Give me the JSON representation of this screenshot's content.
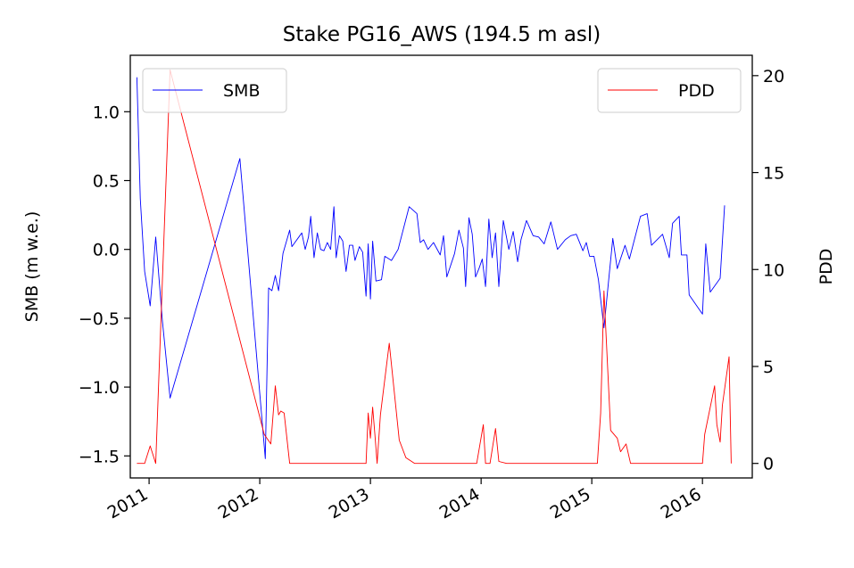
{
  "chart_data": {
    "type": "line",
    "title": "Stake PG16_AWS (194.5 m asl)",
    "xlabel": "",
    "ylabel": "SMB (m w.e.)",
    "y2label": "PDD",
    "xlim": [
      2010.83,
      2016.45
    ],
    "ylim": [
      -1.66,
      1.41
    ],
    "y2lim": [
      -0.75,
      21.05
    ],
    "x_ticks": [
      2011,
      2012,
      2013,
      2014,
      2015,
      2016
    ],
    "x_tick_labels": [
      "2011",
      "2012",
      "2013",
      "2014",
      "2015",
      "2016"
    ],
    "y_ticks": [
      1.0,
      0.5,
      0.0,
      -0.5,
      -1.0,
      -1.5
    ],
    "y_tick_labels": [
      "1.0",
      "0.5",
      "0.0",
      "−0.5",
      "−1.0",
      "−1.5"
    ],
    "y2_ticks": [
      20,
      15,
      10,
      5,
      0
    ],
    "y2_tick_labels": [
      "20",
      "15",
      "10",
      "5",
      "0"
    ],
    "series": [
      {
        "name": "SMB",
        "axis": "left",
        "color": "#0000ff",
        "legend_location": "upper left",
        "points": [
          [
            2010.89,
            1.25
          ],
          [
            2010.92,
            0.37
          ],
          [
            2010.96,
            -0.16
          ],
          [
            2011.01,
            -0.41
          ],
          [
            2011.06,
            0.09
          ],
          [
            2011.12,
            -0.52
          ],
          [
            2011.19,
            -1.08
          ],
          [
            2011.82,
            0.66
          ],
          [
            2012.05,
            -1.52
          ],
          [
            2012.08,
            -0.28
          ],
          [
            2012.11,
            -0.3
          ],
          [
            2012.14,
            -0.19
          ],
          [
            2012.17,
            -0.3
          ],
          [
            2012.21,
            -0.03
          ],
          [
            2012.27,
            0.14
          ],
          [
            2012.29,
            0.02
          ],
          [
            2012.38,
            0.12
          ],
          [
            2012.41,
            0.0
          ],
          [
            2012.44,
            0.09
          ],
          [
            2012.46,
            0.24
          ],
          [
            2012.49,
            -0.06
          ],
          [
            2012.52,
            0.12
          ],
          [
            2012.55,
            0.0
          ],
          [
            2012.58,
            -0.01
          ],
          [
            2012.61,
            0.05
          ],
          [
            2012.64,
            0.0
          ],
          [
            2012.67,
            0.31
          ],
          [
            2012.69,
            -0.06
          ],
          [
            2012.72,
            0.1
          ],
          [
            2012.75,
            0.06
          ],
          [
            2012.78,
            -0.16
          ],
          [
            2012.81,
            0.03
          ],
          [
            2012.84,
            0.03
          ],
          [
            2012.86,
            -0.08
          ],
          [
            2012.9,
            0.02
          ],
          [
            2012.93,
            -0.02
          ],
          [
            2012.96,
            -0.34
          ],
          [
            2012.98,
            0.04
          ],
          [
            2013.0,
            -0.36
          ],
          [
            2013.02,
            0.06
          ],
          [
            2013.05,
            -0.23
          ],
          [
            2013.1,
            -0.22
          ],
          [
            2013.13,
            -0.05
          ],
          [
            2013.19,
            -0.08
          ],
          [
            2013.25,
            0.0
          ],
          [
            2013.35,
            0.31
          ],
          [
            2013.42,
            0.26
          ],
          [
            2013.45,
            0.05
          ],
          [
            2013.48,
            0.07
          ],
          [
            2013.52,
            0.0
          ],
          [
            2013.57,
            0.05
          ],
          [
            2013.63,
            -0.04
          ],
          [
            2013.66,
            0.1
          ],
          [
            2013.69,
            -0.2
          ],
          [
            2013.76,
            -0.03
          ],
          [
            2013.8,
            0.14
          ],
          [
            2013.84,
            0.01
          ],
          [
            2013.86,
            -0.27
          ],
          [
            2013.89,
            0.23
          ],
          [
            2013.92,
            0.11
          ],
          [
            2013.95,
            -0.2
          ],
          [
            2013.98,
            -0.14
          ],
          [
            2014.01,
            -0.07
          ],
          [
            2014.04,
            -0.27
          ],
          [
            2014.07,
            0.22
          ],
          [
            2014.1,
            -0.06
          ],
          [
            2014.13,
            0.12
          ],
          [
            2014.16,
            -0.27
          ],
          [
            2014.2,
            0.21
          ],
          [
            2014.25,
            0.0
          ],
          [
            2014.29,
            0.13
          ],
          [
            2014.33,
            -0.09
          ],
          [
            2014.36,
            0.07
          ],
          [
            2014.41,
            0.21
          ],
          [
            2014.47,
            0.1
          ],
          [
            2014.52,
            0.09
          ],
          [
            2014.57,
            0.04
          ],
          [
            2014.63,
            0.2
          ],
          [
            2014.69,
            0.0
          ],
          [
            2014.76,
            0.07
          ],
          [
            2014.81,
            0.1
          ],
          [
            2014.86,
            0.11
          ],
          [
            2014.92,
            -0.01
          ],
          [
            2014.95,
            0.05
          ],
          [
            2014.98,
            -0.05
          ],
          [
            2015.02,
            -0.05
          ],
          [
            2015.06,
            -0.22
          ],
          [
            2015.11,
            -0.57
          ],
          [
            2015.19,
            0.08
          ],
          [
            2015.23,
            -0.14
          ],
          [
            2015.3,
            0.03
          ],
          [
            2015.34,
            -0.07
          ],
          [
            2015.44,
            0.24
          ],
          [
            2015.5,
            0.26
          ],
          [
            2015.54,
            0.03
          ],
          [
            2015.64,
            0.11
          ],
          [
            2015.7,
            -0.06
          ],
          [
            2015.73,
            0.19
          ],
          [
            2015.79,
            0.24
          ],
          [
            2015.81,
            -0.04
          ],
          [
            2015.86,
            -0.04
          ],
          [
            2015.88,
            -0.33
          ],
          [
            2016.0,
            -0.47
          ],
          [
            2016.03,
            0.04
          ],
          [
            2016.07,
            -0.31
          ],
          [
            2016.16,
            -0.21
          ],
          [
            2016.2,
            0.32
          ]
        ]
      },
      {
        "name": "PDD",
        "axis": "right",
        "color": "#ff0000",
        "legend_location": "upper right",
        "points": [
          [
            2010.89,
            0.0
          ],
          [
            2010.96,
            0.0
          ],
          [
            2011.01,
            0.9
          ],
          [
            2011.06,
            0.0
          ],
          [
            2011.19,
            20.3
          ],
          [
            2012.04,
            1.5
          ],
          [
            2012.1,
            1.0
          ],
          [
            2012.14,
            4.0
          ],
          [
            2012.17,
            2.5
          ],
          [
            2012.19,
            2.7
          ],
          [
            2012.22,
            2.6
          ],
          [
            2012.27,
            0.0
          ],
          [
            2012.96,
            0.0
          ],
          [
            2012.98,
            2.6
          ],
          [
            2013.0,
            1.3
          ],
          [
            2013.02,
            2.9
          ],
          [
            2013.04,
            1.5
          ],
          [
            2013.06,
            0.0
          ],
          [
            2013.09,
            2.5
          ],
          [
            2013.17,
            6.2
          ],
          [
            2013.26,
            1.2
          ],
          [
            2013.32,
            0.3
          ],
          [
            2013.4,
            0.0
          ],
          [
            2013.96,
            0.0
          ],
          [
            2014.02,
            2.0
          ],
          [
            2014.04,
            0.0
          ],
          [
            2014.08,
            0.0
          ],
          [
            2014.13,
            1.8
          ],
          [
            2014.16,
            0.1
          ],
          [
            2014.23,
            0.0
          ],
          [
            2015.05,
            0.0
          ],
          [
            2015.08,
            2.6
          ],
          [
            2015.11,
            8.9
          ],
          [
            2015.17,
            1.7
          ],
          [
            2015.23,
            1.3
          ],
          [
            2015.26,
            0.6
          ],
          [
            2015.31,
            1.0
          ],
          [
            2015.35,
            0.0
          ],
          [
            2016.0,
            0.0
          ],
          [
            2016.02,
            1.5
          ],
          [
            2016.11,
            4.0
          ],
          [
            2016.13,
            2.0
          ],
          [
            2016.16,
            1.1
          ],
          [
            2016.18,
            3.0
          ],
          [
            2016.24,
            5.5
          ],
          [
            2016.26,
            0.0
          ]
        ]
      }
    ]
  }
}
